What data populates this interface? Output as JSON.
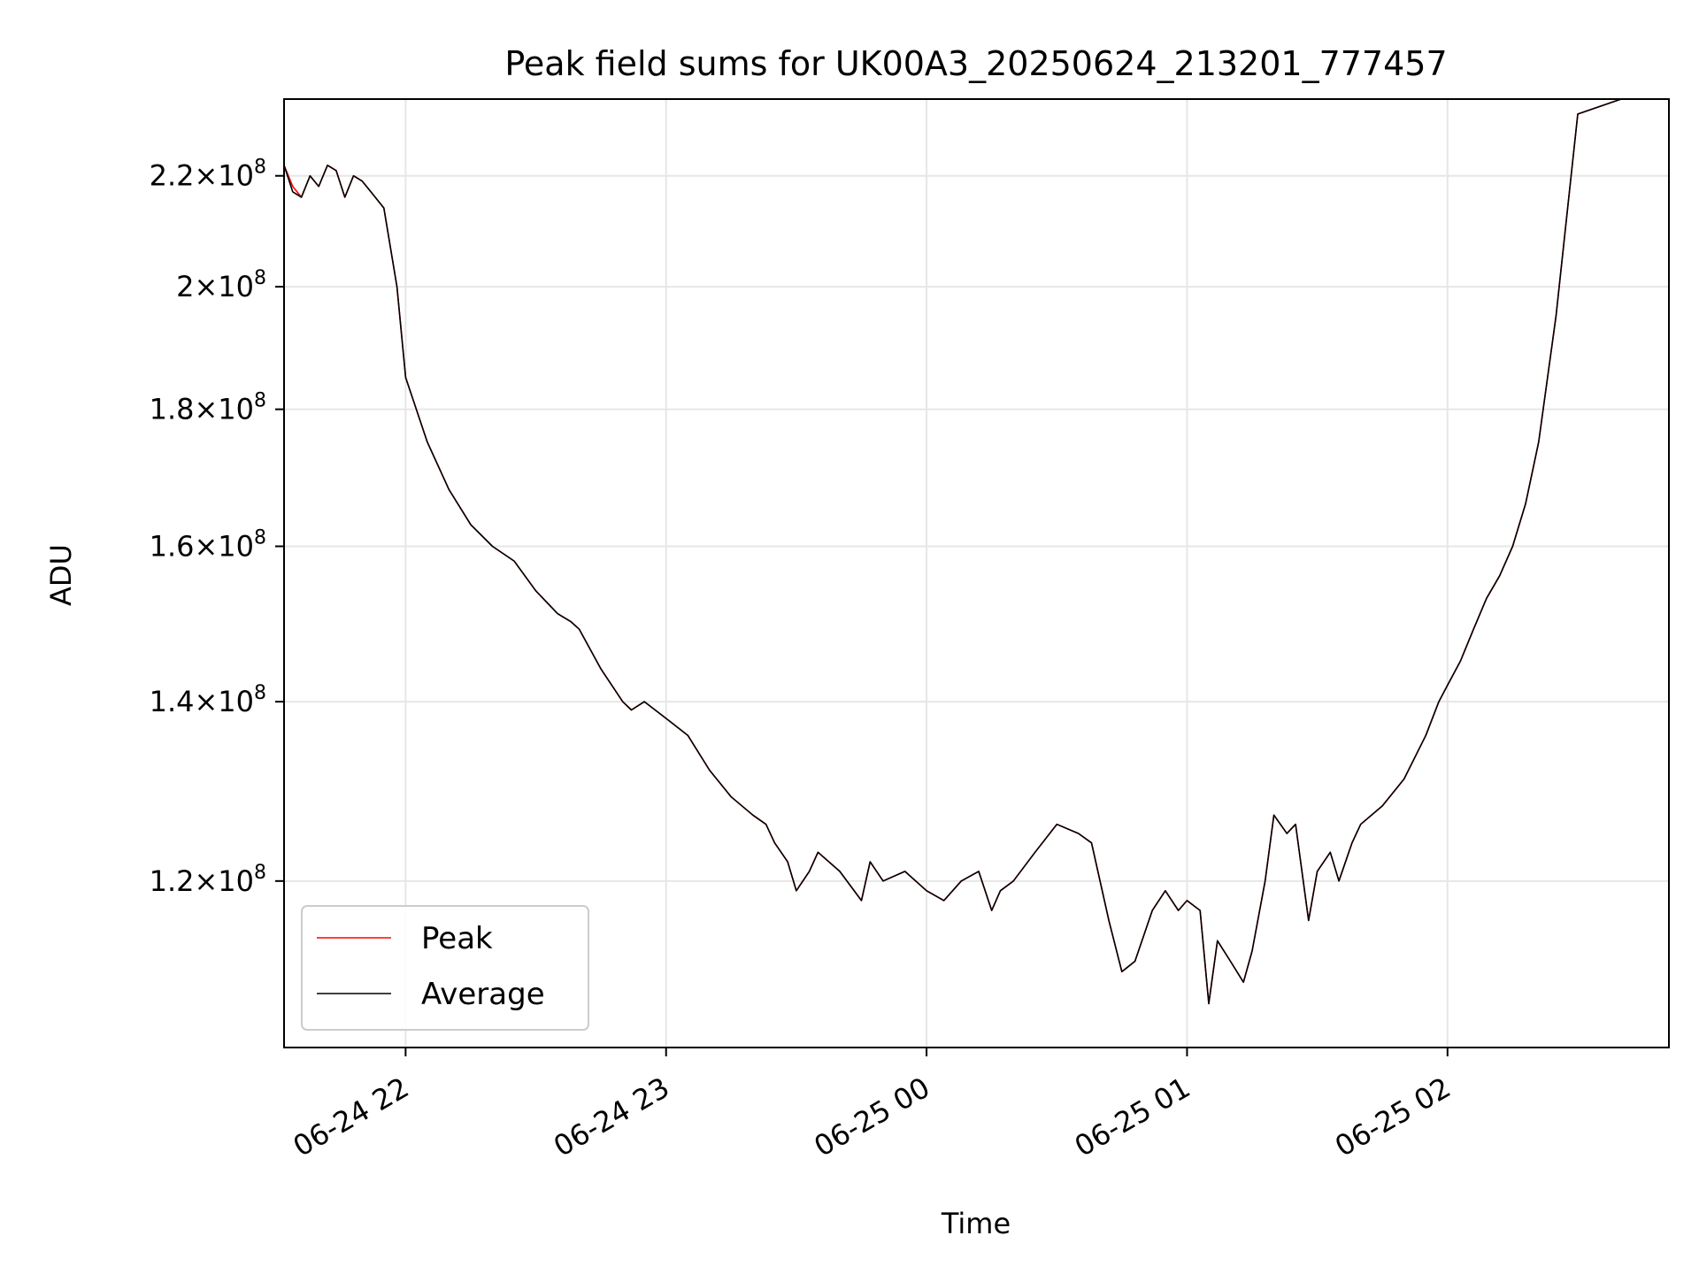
{
  "chart_data": {
    "type": "line",
    "title": "Peak field sums for UK00A3_20250624_213201_777457",
    "xlabel": "Time",
    "ylabel": "ADU",
    "y_scale": "log",
    "grid": true,
    "legend_position": "lower-left",
    "xlim": [
      "2025-06-24T21:32:00",
      "2025-06-25T02:51:00"
    ],
    "ylim": [
      104000000,
      235000000
    ],
    "x_ticks": [
      {
        "value": "2025-06-24T22:00:00",
        "label": "06-24 22"
      },
      {
        "value": "2025-06-24T23:00:00",
        "label": "06-24 23"
      },
      {
        "value": "2025-06-25T00:00:00",
        "label": "06-25 00"
      },
      {
        "value": "2025-06-25T01:00:00",
        "label": "06-25 01"
      },
      {
        "value": "2025-06-25T02:00:00",
        "label": "06-25 02"
      }
    ],
    "y_ticks": [
      {
        "value": 120000000,
        "mantissa": "1.2",
        "base": "10",
        "exponent": "8"
      },
      {
        "value": 140000000,
        "mantissa": "1.4",
        "base": "10",
        "exponent": "8"
      },
      {
        "value": 160000000,
        "mantissa": "1.6",
        "base": "10",
        "exponent": "8"
      },
      {
        "value": 180000000,
        "mantissa": "1.8",
        "base": "10",
        "exponent": "8"
      },
      {
        "value": 200000000,
        "mantissa": "2",
        "base": "10",
        "exponent": "8"
      },
      {
        "value": 220000000,
        "mantissa": "2.2",
        "base": "10",
        "exponent": "8"
      }
    ],
    "x": [
      "2025-06-24T21:32:00",
      "2025-06-24T21:34:00",
      "2025-06-24T21:36:00",
      "2025-06-24T21:38:00",
      "2025-06-24T21:40:00",
      "2025-06-24T21:42:00",
      "2025-06-24T21:44:00",
      "2025-06-24T21:46:00",
      "2025-06-24T21:48:00",
      "2025-06-24T21:50:00",
      "2025-06-24T21:52:00",
      "2025-06-24T21:55:00",
      "2025-06-24T21:58:00",
      "2025-06-24T22:00:00",
      "2025-06-24T22:05:00",
      "2025-06-24T22:10:00",
      "2025-06-24T22:15:00",
      "2025-06-24T22:20:00",
      "2025-06-24T22:25:00",
      "2025-06-24T22:30:00",
      "2025-06-24T22:35:00",
      "2025-06-24T22:38:00",
      "2025-06-24T22:40:00",
      "2025-06-24T22:45:00",
      "2025-06-24T22:50:00",
      "2025-06-24T22:52:00",
      "2025-06-24T22:55:00",
      "2025-06-24T23:00:00",
      "2025-06-24T23:05:00",
      "2025-06-24T23:10:00",
      "2025-06-24T23:15:00",
      "2025-06-24T23:20:00",
      "2025-06-24T23:23:00",
      "2025-06-24T23:25:00",
      "2025-06-24T23:28:00",
      "2025-06-24T23:30:00",
      "2025-06-24T23:33:00",
      "2025-06-24T23:35:00",
      "2025-06-24T23:40:00",
      "2025-06-24T23:45:00",
      "2025-06-24T23:47:00",
      "2025-06-24T23:50:00",
      "2025-06-24T23:55:00",
      "2025-06-25T00:00:00",
      "2025-06-25T00:04:00",
      "2025-06-25T00:08:00",
      "2025-06-25T00:12:00",
      "2025-06-25T00:15:00",
      "2025-06-25T00:17:00",
      "2025-06-25T00:20:00",
      "2025-06-25T00:25:00",
      "2025-06-25T00:30:00",
      "2025-06-25T00:35:00",
      "2025-06-25T00:38:00",
      "2025-06-25T00:42:00",
      "2025-06-25T00:45:00",
      "2025-06-25T00:48:00",
      "2025-06-25T00:52:00",
      "2025-06-25T00:55:00",
      "2025-06-25T00:58:00",
      "2025-06-25T01:00:00",
      "2025-06-25T01:03:00",
      "2025-06-25T01:05:00",
      "2025-06-25T01:07:00",
      "2025-06-25T01:10:00",
      "2025-06-25T01:13:00",
      "2025-06-25T01:15:00",
      "2025-06-25T01:18:00",
      "2025-06-25T01:20:00",
      "2025-06-25T01:23:00",
      "2025-06-25T01:25:00",
      "2025-06-25T01:28:00",
      "2025-06-25T01:30:00",
      "2025-06-25T01:33:00",
      "2025-06-25T01:35:00",
      "2025-06-25T01:38:00",
      "2025-06-25T01:40:00",
      "2025-06-25T01:45:00",
      "2025-06-25T01:50:00",
      "2025-06-25T01:55:00",
      "2025-06-25T01:58:00",
      "2025-06-25T02:00:00",
      "2025-06-25T02:03:00",
      "2025-06-25T02:06:00",
      "2025-06-25T02:09:00",
      "2025-06-25T02:12:00",
      "2025-06-25T02:15:00",
      "2025-06-25T02:18:00",
      "2025-06-25T02:21:00",
      "2025-06-25T02:25:00",
      "2025-06-25T02:30:00",
      "2025-06-25T02:40:00",
      "2025-06-25T02:51:00"
    ],
    "series": [
      {
        "name": "Peak",
        "color": "#ff0000",
        "values": [
          222,
          218,
          216,
          220,
          218,
          222,
          221,
          216,
          220,
          219,
          217,
          214,
          200,
          185,
          175,
          168,
          163,
          160,
          158,
          154,
          151,
          150,
          149,
          144,
          140,
          139,
          140,
          138,
          136,
          132,
          129,
          127,
          126,
          124,
          122,
          119,
          121,
          123,
          121,
          118,
          122,
          120,
          121,
          119,
          118,
          120,
          121,
          117,
          119,
          120,
          123,
          126,
          125,
          124,
          116,
          111,
          112,
          117,
          119,
          117,
          118,
          117,
          108,
          114,
          112,
          110,
          113,
          120,
          127,
          125,
          126,
          116,
          121,
          123,
          120,
          124,
          126,
          128,
          131,
          136,
          140,
          142,
          145,
          149,
          153,
          156,
          160,
          166,
          175,
          195,
          232,
          235,
          235
        ]
      },
      {
        "name": "Average",
        "color": "#000000",
        "values": [
          222,
          217,
          216,
          220,
          218,
          222,
          221,
          216,
          220,
          219,
          217,
          214,
          200,
          185,
          175,
          168,
          163,
          160,
          158,
          154,
          151,
          150,
          149,
          144,
          140,
          139,
          140,
          138,
          136,
          132,
          129,
          127,
          126,
          124,
          122,
          119,
          121,
          123,
          121,
          118,
          122,
          120,
          121,
          119,
          118,
          120,
          121,
          117,
          119,
          120,
          123,
          126,
          125,
          124,
          116,
          111,
          112,
          117,
          119,
          117,
          118,
          117,
          108,
          114,
          112,
          110,
          113,
          120,
          127,
          125,
          126,
          116,
          121,
          123,
          120,
          124,
          126,
          128,
          131,
          136,
          140,
          142,
          145,
          149,
          153,
          156,
          160,
          166,
          175,
          195,
          232,
          235,
          235
        ]
      }
    ]
  }
}
